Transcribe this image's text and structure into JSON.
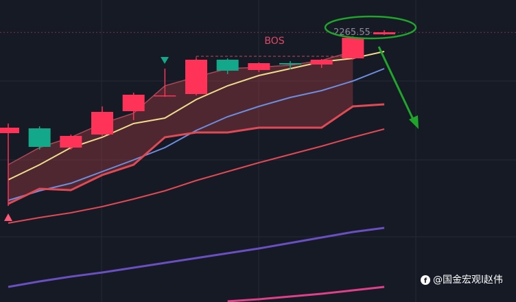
{
  "chart_data": {
    "type": "candlestick",
    "categories": [
      null,
      null,
      null,
      null,
      null,
      null,
      null,
      null,
      null,
      null,
      null,
      null,
      null
    ],
    "open": [
      2236.2,
      2237.6,
      2232,
      2235.8,
      2242.6,
      2247.2,
      2247.6,
      2257.6,
      2254.6,
      2256.6,
      2256.2,
      2258,
      2265
    ],
    "close": [
      2237.8,
      2232.2,
      2235.4,
      2242.4,
      2247.4,
      2247.2,
      2257.6,
      2254.4,
      2256.6,
      2256.2,
      2257.6,
      2264,
      2265.6
    ],
    "high": [
      2239,
      2238.2,
      2235.8,
      2244,
      2248,
      2255,
      2258,
      2258,
      2256.8,
      2257.2,
      2257.8,
      2264.4,
      2266.2
    ],
    "low": [
      2215,
      2231.4,
      2231.4,
      2235.4,
      2240,
      2246.8,
      2247.2,
      2253.4,
      2254,
      2254.8,
      2255.2,
      2257.6,
      2264.8
    ],
    "up_color": "#ff3358",
    "down_color": "#13a889",
    "series": [
      {
        "color": "#f0dc8c",
        "values": [
          2222.6,
          2227,
          2232,
          2235,
          2239,
          2240.6,
          2246,
          2250,
          2253,
          2255,
          2257,
          2258,
          2260
        ]
      },
      {
        "color": "#6e8ee0",
        "values": [
          2216.6,
          2219.4,
          2221.6,
          2225,
          2228.4,
          2232,
          2237,
          2241,
          2244,
          2246.6,
          2248.6,
          2251.4,
          2255
        ]
      },
      {
        "color": "#e04a55",
        "values": [
          2215.6,
          2220,
          2219.6,
          2224,
          2227,
          2235,
          2236.4,
          2236.4,
          2237.8,
          2237.8,
          2237.8,
          2244,
          2244.6
        ]
      },
      {
        "color": "#a84a55",
        "values": [
          2227,
          2232,
          2235,
          2239,
          2242,
          2250,
          2252.6,
          2255,
          2255.4,
          2256,
          2257.4,
          2260,
          null
        ]
      },
      {
        "color": "#e04a55",
        "values": [
          2210,
          2211.6,
          2213,
          2214.8,
          2217,
          2219.4,
          2222.4,
          2225,
          2227.6,
          2230,
          2232.4,
          2235,
          2237.4
        ]
      },
      {
        "color": "#6a4fc0",
        "values": [
          2191.4,
          2193,
          2194.4,
          2195.6,
          2197,
          2198.4,
          2199.8,
          2201.2,
          2202.6,
          2204.2,
          2205.8,
          2207.4,
          2208.6
        ]
      },
      {
        "color": "#e0408a",
        "values": [
          null,
          null,
          null,
          null,
          null,
          null,
          null,
          2187.2,
          2187.8,
          2188.6,
          2189.4,
          2190.4,
          2191.4
        ]
      }
    ],
    "ylim": [
      2187,
      2275
    ],
    "last_price": 2265.55,
    "bos": {
      "label": "BOS",
      "level": 2258.6
    },
    "watermark": "@国金宏观l赵伟"
  }
}
